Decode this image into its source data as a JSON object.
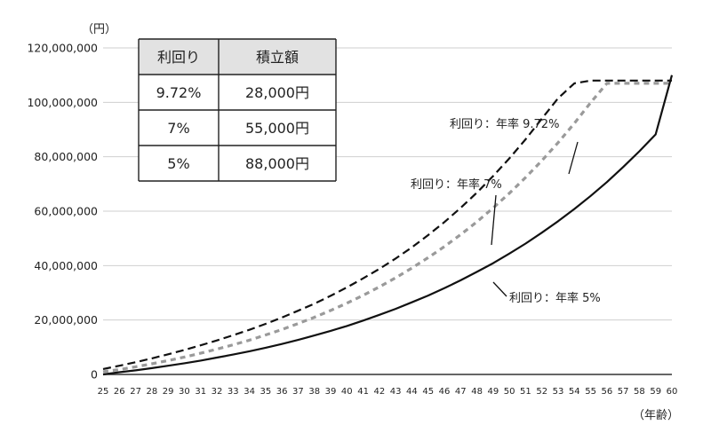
{
  "chart_data": {
    "type": "line",
    "y_unit": "（円）",
    "x_unit": "（年齢）",
    "x": [
      25,
      26,
      27,
      28,
      29,
      30,
      31,
      32,
      33,
      34,
      35,
      36,
      37,
      38,
      39,
      40,
      41,
      42,
      43,
      44,
      45,
      46,
      47,
      48,
      49,
      50,
      51,
      52,
      53,
      54,
      55,
      56,
      57,
      58,
      59,
      60
    ],
    "y_ticks": [
      0,
      20000000,
      40000000,
      60000000,
      80000000,
      100000000,
      120000000
    ],
    "y_tick_labels": [
      "0",
      "20,000,000",
      "40,000,000",
      "60,000,000",
      "80,000,000",
      "100,000,000",
      "120,000,000"
    ],
    "ylim": [
      0,
      120000000
    ],
    "grid": true,
    "series": [
      {
        "name": "利回り：年率 9.72%",
        "style": "dashed",
        "color": "#111111",
        "values": [
          2000000,
          3200000,
          4500000,
          5900000,
          7400000,
          9000000,
          10700000,
          12500000,
          14400000,
          16400000,
          18600000,
          20900000,
          23400000,
          26000000,
          28900000,
          32000000,
          35300000,
          38800000,
          42600000,
          46700000,
          51200000,
          56000000,
          61200000,
          66800000,
          72900000,
          79400000,
          86400000,
          94000000,
          101500000,
          107000000,
          108000000,
          108000000,
          108000000,
          108000000,
          108000000,
          108000000
        ]
      },
      {
        "name": "利回り：年率 7%",
        "style": "dotted",
        "color": "#9a9a9a",
        "values": [
          1000000,
          1800000,
          2800000,
          3900000,
          5100000,
          6400000,
          7800000,
          9300000,
          10900000,
          12600000,
          14500000,
          16500000,
          18700000,
          21000000,
          23500000,
          26200000,
          29100000,
          32200000,
          35500000,
          39100000,
          42900000,
          47000000,
          51400000,
          56100000,
          61200000,
          66600000,
          72400000,
          78600000,
          85200000,
          92300000,
          99900000,
          107000000,
          107000000,
          107000000,
          107000000,
          107000000
        ]
      },
      {
        "name": "利回り：年率 5%",
        "style": "solid",
        "color": "#111111",
        "values": [
          0,
          800000,
          1500000,
          2300000,
          3200000,
          4100000,
          5100000,
          6200000,
          7300000,
          8500000,
          9800000,
          11200000,
          12700000,
          14300000,
          16000000,
          17800000,
          19800000,
          21900000,
          24100000,
          26500000,
          29000000,
          31700000,
          34600000,
          37700000,
          40900000,
          44400000,
          48100000,
          52100000,
          56300000,
          60800000,
          65600000,
          70700000,
          76200000,
          82000000,
          88200000,
          110000000
        ]
      }
    ],
    "annotations": [
      {
        "text": "利回り：年率 9.72%",
        "series": 0
      },
      {
        "text": "利回り：年率 7%",
        "series": 1
      },
      {
        "text": "利回り：年率 5%",
        "series": 2
      }
    ],
    "table": {
      "headers": [
        "利回り",
        "積立額"
      ],
      "rows": [
        [
          "9.72%",
          "28,000円"
        ],
        [
          "7%",
          "55,000円"
        ],
        [
          "5%",
          "88,000円"
        ]
      ]
    }
  }
}
